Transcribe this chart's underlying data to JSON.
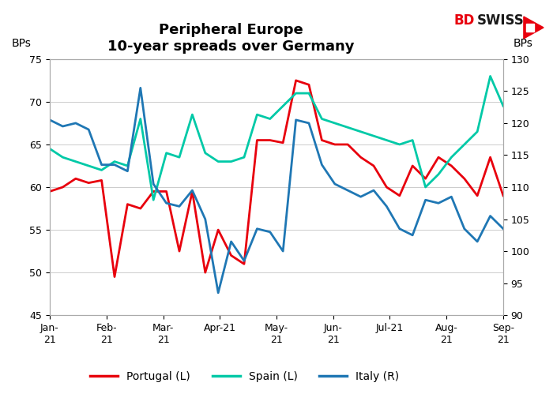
{
  "title_line1": "Peripheral Europe",
  "title_line2": "10-year spreads over Germany",
  "ylabel_left": "BPs",
  "ylabel_right": "BPs",
  "ylim_left": [
    45,
    75
  ],
  "ylim_right": [
    90,
    130
  ],
  "yticks_left": [
    45,
    50,
    55,
    60,
    65,
    70,
    75
  ],
  "yticks_right": [
    90,
    95,
    100,
    105,
    110,
    115,
    120,
    125,
    130
  ],
  "x_labels": [
    "Jan-\n21",
    "Feb-\n21",
    "Mar-\n21",
    "Apr-21",
    "May-\n21",
    "Jun-\n21",
    "Jul-21",
    "Aug-\n21",
    "Sep-\n21"
  ],
  "portugal_color": "#e8000d",
  "spain_color": "#00c9a7",
  "italy_color": "#1f77b4",
  "portugal": [
    59.5,
    60.0,
    61.0,
    60.5,
    60.8,
    49.5,
    58.0,
    57.5,
    59.5,
    59.5,
    52.5,
    59.5,
    50.0,
    55.0,
    52.0,
    51.0,
    65.5,
    65.5,
    65.2,
    72.5,
    72.0,
    65.5,
    65.0,
    65.0,
    63.5,
    62.5,
    60.0,
    59.0,
    62.5,
    61.0,
    63.5,
    62.5,
    61.0,
    59.0,
    63.5,
    59.0
  ],
  "spain": [
    64.5,
    63.5,
    63.0,
    62.5,
    62.0,
    63.0,
    62.5,
    68.0,
    58.5,
    64.0,
    63.5,
    68.5,
    64.0,
    63.0,
    63.0,
    63.5,
    68.5,
    68.0,
    69.5,
    71.0,
    71.0,
    68.0,
    67.5,
    67.0,
    66.5,
    66.0,
    65.5,
    65.0,
    65.5,
    60.0,
    61.5,
    63.5,
    65.0,
    66.5,
    73.0,
    69.5
  ],
  "italy": [
    120.5,
    119.5,
    120.0,
    119.0,
    113.5,
    113.5,
    112.5,
    125.5,
    110.5,
    107.5,
    107.0,
    109.5,
    105.0,
    93.5,
    101.5,
    98.5,
    103.5,
    103.0,
    100.0,
    120.5,
    120.0,
    113.5,
    110.5,
    109.5,
    108.5,
    109.5,
    107.0,
    103.5,
    102.5,
    108.0,
    107.5,
    108.5,
    103.5,
    101.5,
    105.5,
    103.5
  ],
  "background_color": "#ffffff",
  "grid_color": "#cccccc",
  "legend_labels": [
    "Portugal (L)",
    "Spain (L)",
    "Italy (R)"
  ],
  "line_width": 2.0
}
